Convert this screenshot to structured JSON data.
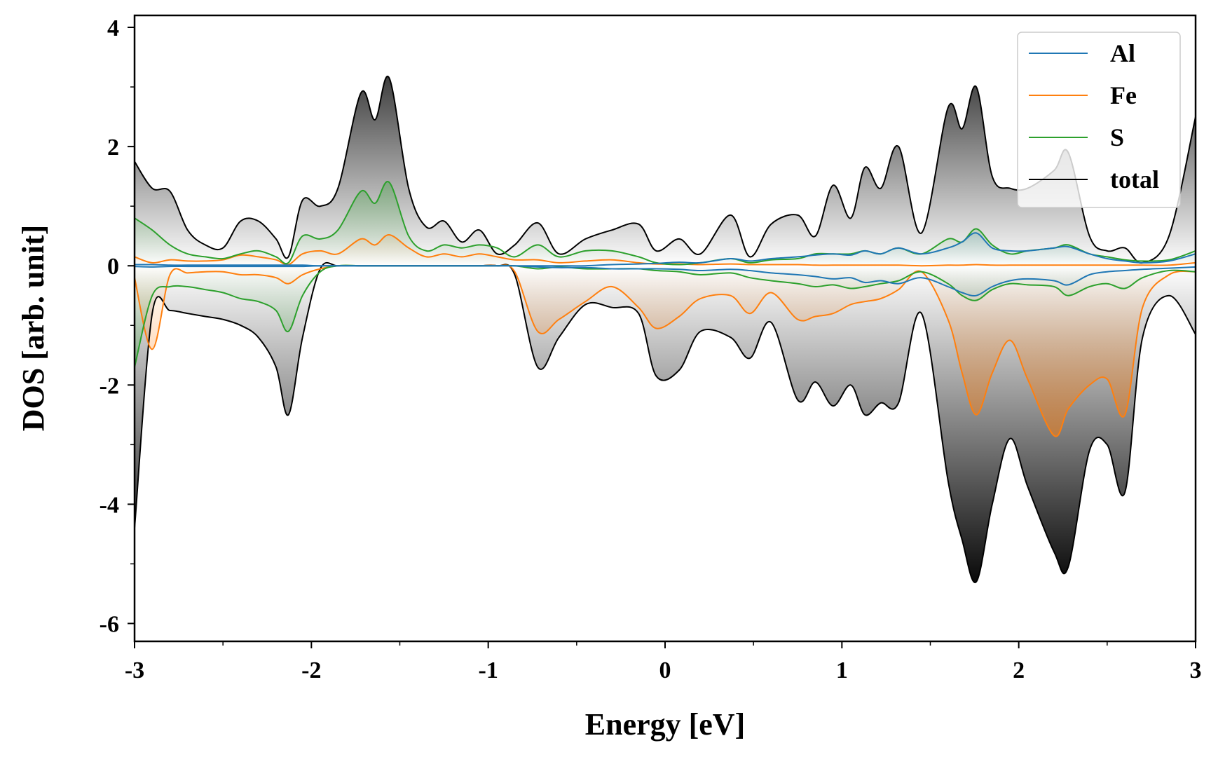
{
  "chart_data": {
    "type": "area",
    "xlabel": "Energy [eV]",
    "ylabel": "DOS [arb. unit]",
    "xlim": [
      -3,
      3
    ],
    "ylim": [
      -6.3,
      4.2
    ],
    "x_ticks": [
      -3,
      -2,
      -1,
      0,
      1,
      2,
      3
    ],
    "x_tick_labels": [
      "-3",
      "-2",
      "-1",
      "0",
      "1",
      "2",
      "3"
    ],
    "y_ticks": [
      -6,
      -4,
      -2,
      0,
      2,
      4
    ],
    "y_tick_labels": [
      "-6",
      "-4",
      "-2",
      "0",
      "2",
      "4"
    ],
    "grid": false,
    "legend_position": "top-right",
    "x": [
      -3.0,
      -2.9,
      -2.8,
      -2.7,
      -2.6,
      -2.5,
      -2.4,
      -2.3,
      -2.2,
      -2.13,
      -2.05,
      -1.95,
      -1.85,
      -1.72,
      -1.64,
      -1.56,
      -1.45,
      -1.35,
      -1.25,
      -1.15,
      -1.05,
      -0.95,
      -0.85,
      -0.72,
      -0.6,
      -0.45,
      -0.3,
      -0.15,
      -0.05,
      0.08,
      0.2,
      0.37,
      0.48,
      0.6,
      0.75,
      0.85,
      0.95,
      1.05,
      1.13,
      1.22,
      1.32,
      1.45,
      1.6,
      1.68,
      1.76,
      1.85,
      1.95,
      2.05,
      2.2,
      2.28,
      2.4,
      2.5,
      2.6,
      2.7,
      2.85,
      3.0
    ],
    "series": [
      {
        "name": "Al",
        "color": "#1f77b4",
        "spin_up": [
          0.02,
          0.02,
          0.01,
          0.01,
          0.01,
          0.01,
          0.01,
          0.01,
          0.01,
          0.01,
          0.01,
          0.0,
          0.0,
          0.0,
          0.0,
          0.0,
          0.0,
          0.0,
          0.0,
          0.0,
          0.0,
          0.0,
          0.0,
          0.0,
          0.0,
          0.0,
          0.02,
          0.03,
          0.04,
          0.06,
          0.05,
          0.12,
          0.08,
          0.12,
          0.15,
          0.18,
          0.2,
          0.18,
          0.25,
          0.2,
          0.3,
          0.2,
          0.3,
          0.4,
          0.55,
          0.3,
          0.25,
          0.25,
          0.3,
          0.32,
          0.2,
          0.12,
          0.08,
          0.05,
          0.08,
          0.2
        ],
        "spin_down": [
          -0.01,
          -0.02,
          -0.01,
          -0.01,
          -0.01,
          -0.01,
          -0.01,
          -0.01,
          -0.01,
          -0.01,
          -0.01,
          0.0,
          0.0,
          0.0,
          0.0,
          0.0,
          0.0,
          0.0,
          0.0,
          0.0,
          0.0,
          0.0,
          0.0,
          -0.02,
          -0.03,
          -0.03,
          -0.05,
          -0.05,
          -0.05,
          -0.06,
          -0.08,
          -0.06,
          -0.08,
          -0.12,
          -0.15,
          -0.18,
          -0.22,
          -0.2,
          -0.28,
          -0.25,
          -0.3,
          -0.2,
          -0.35,
          -0.45,
          -0.5,
          -0.35,
          -0.25,
          -0.22,
          -0.25,
          -0.32,
          -0.15,
          -0.1,
          -0.08,
          -0.06,
          -0.04,
          -0.02
        ]
      },
      {
        "name": "Fe",
        "color": "#ff7f0e",
        "spin_up": [
          0.15,
          0.05,
          0.1,
          0.08,
          0.08,
          0.1,
          0.18,
          0.15,
          0.1,
          0.02,
          0.2,
          0.25,
          0.2,
          0.45,
          0.35,
          0.52,
          0.3,
          0.15,
          0.2,
          0.15,
          0.2,
          0.15,
          0.1,
          0.1,
          0.05,
          0.08,
          0.1,
          0.05,
          0.03,
          0.03,
          0.02,
          0.03,
          0.02,
          0.02,
          0.02,
          0.01,
          0.01,
          0.01,
          0.01,
          0.01,
          0.01,
          0.0,
          0.01,
          0.01,
          0.02,
          0.01,
          0.01,
          0.01,
          0.01,
          0.01,
          0.01,
          0.01,
          0.01,
          0.01,
          0.01,
          0.05
        ],
        "spin_down": [
          -0.2,
          -1.4,
          -0.15,
          -0.12,
          -0.1,
          -0.1,
          -0.15,
          -0.15,
          -0.2,
          -0.3,
          -0.15,
          -0.05,
          0.0,
          0.0,
          0.0,
          0.0,
          0.0,
          0.0,
          0.0,
          0.0,
          0.0,
          0.0,
          -0.1,
          -1.1,
          -0.9,
          -0.6,
          -0.35,
          -0.7,
          -1.05,
          -0.85,
          -0.55,
          -0.5,
          -0.8,
          -0.45,
          -0.9,
          -0.85,
          -0.8,
          -0.65,
          -0.6,
          -0.55,
          -0.4,
          -0.1,
          -0.9,
          -1.8,
          -2.5,
          -1.8,
          -1.25,
          -1.9,
          -2.85,
          -2.4,
          -2.0,
          -1.9,
          -2.5,
          -0.7,
          -0.15,
          -0.1
        ]
      },
      {
        "name": "S",
        "color": "#2ca02c",
        "spin_up": [
          0.8,
          0.6,
          0.35,
          0.2,
          0.15,
          0.12,
          0.2,
          0.25,
          0.15,
          0.05,
          0.5,
          0.45,
          0.6,
          1.25,
          1.05,
          1.4,
          0.5,
          0.25,
          0.35,
          0.3,
          0.35,
          0.3,
          0.15,
          0.35,
          0.15,
          0.25,
          0.25,
          0.15,
          0.05,
          0.02,
          0.05,
          0.12,
          0.05,
          0.1,
          0.12,
          0.2,
          0.2,
          0.2,
          0.25,
          0.2,
          0.3,
          0.2,
          0.45,
          0.4,
          0.62,
          0.35,
          0.2,
          0.25,
          0.3,
          0.35,
          0.2,
          0.15,
          0.1,
          0.08,
          0.1,
          0.25
        ],
        "spin_down": [
          -1.7,
          -0.5,
          -0.35,
          -0.35,
          -0.4,
          -0.45,
          -0.55,
          -0.6,
          -0.75,
          -1.1,
          -0.5,
          -0.1,
          0.0,
          0.0,
          0.0,
          0.0,
          0.0,
          0.0,
          0.0,
          0.0,
          0.0,
          0.0,
          0.0,
          -0.05,
          -0.02,
          -0.05,
          -0.05,
          -0.05,
          -0.08,
          -0.1,
          -0.15,
          -0.12,
          -0.2,
          -0.25,
          -0.3,
          -0.35,
          -0.32,
          -0.38,
          -0.35,
          -0.3,
          -0.25,
          -0.1,
          -0.3,
          -0.5,
          -0.58,
          -0.4,
          -0.3,
          -0.32,
          -0.35,
          -0.5,
          -0.35,
          -0.3,
          -0.38,
          -0.2,
          -0.08,
          -0.1
        ]
      },
      {
        "name": "total",
        "color": "#000000",
        "spin_up": [
          1.75,
          1.3,
          1.25,
          0.6,
          0.35,
          0.3,
          0.75,
          0.75,
          0.45,
          0.15,
          1.1,
          1.0,
          1.3,
          2.9,
          2.45,
          3.15,
          1.3,
          0.65,
          0.75,
          0.4,
          0.6,
          0.2,
          0.35,
          0.72,
          0.2,
          0.45,
          0.6,
          0.7,
          0.25,
          0.45,
          0.2,
          0.85,
          0.15,
          0.7,
          0.85,
          0.5,
          1.35,
          0.8,
          1.65,
          1.3,
          2.0,
          0.55,
          2.65,
          2.3,
          3.0,
          1.5,
          1.3,
          1.3,
          1.6,
          1.9,
          0.5,
          0.25,
          0.3,
          0.05,
          0.5,
          2.5
        ],
        "spin_down": [
          -4.4,
          -0.8,
          -0.75,
          -0.8,
          -0.85,
          -0.9,
          -1.0,
          -1.2,
          -1.7,
          -2.5,
          -1.2,
          -0.05,
          0.0,
          0.0,
          0.0,
          0.0,
          0.0,
          0.0,
          0.0,
          0.0,
          0.0,
          0.0,
          -0.15,
          -1.7,
          -1.2,
          -0.65,
          -0.7,
          -0.8,
          -1.85,
          -1.75,
          -1.1,
          -1.2,
          -1.55,
          -0.95,
          -2.25,
          -1.95,
          -2.35,
          -2.0,
          -2.5,
          -2.3,
          -2.3,
          -0.8,
          -3.6,
          -4.6,
          -5.3,
          -4.0,
          -2.9,
          -3.7,
          -4.8,
          -5.05,
          -3.1,
          -3.0,
          -3.8,
          -1.2,
          -0.5,
          -1.15
        ]
      }
    ]
  }
}
